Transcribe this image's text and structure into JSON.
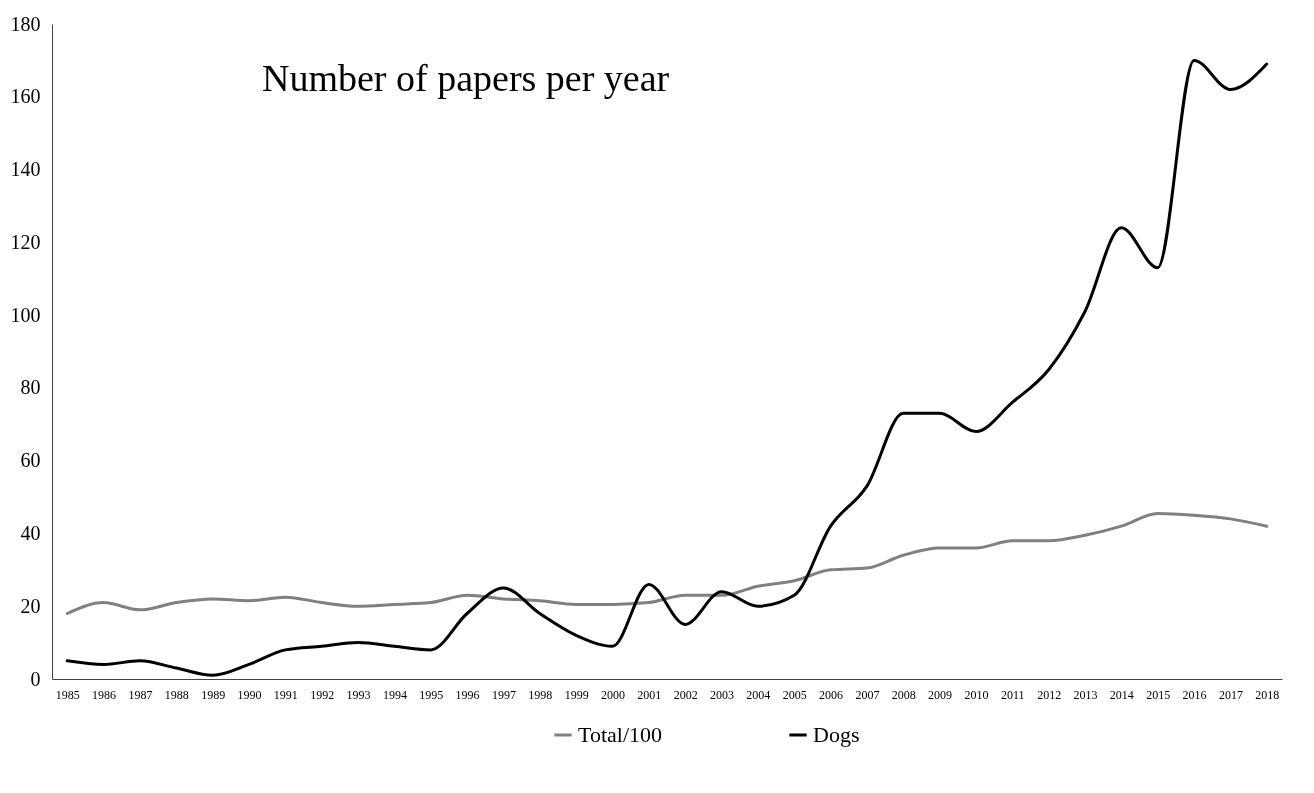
{
  "chart_data": {
    "type": "line",
    "title": "Number of papers per year",
    "categories": [
      "1985",
      "1986",
      "1987",
      "1988",
      "1989",
      "1990",
      "1991",
      "1992",
      "1993",
      "1994",
      "1995",
      "1996",
      "1997",
      "1998",
      "1999",
      "2000",
      "2001",
      "2002",
      "2003",
      "2004",
      "2005",
      "2006",
      "2007",
      "2008",
      "2009",
      "2010",
      "2011",
      "2012",
      "2013",
      "2014",
      "2015",
      "2016",
      "2017",
      "2018"
    ],
    "series": [
      {
        "name": "Total/100",
        "color": "#808080",
        "values": [
          18,
          21,
          19,
          21,
          22,
          21.5,
          22.5,
          21,
          20,
          20.5,
          21,
          23,
          22,
          21.5,
          20.5,
          20.5,
          21,
          23,
          23,
          25.5,
          27,
          30,
          30.5,
          34,
          36,
          36,
          38,
          38,
          39.5,
          42,
          45.5,
          45,
          44,
          42
        ]
      },
      {
        "name": "Dogs",
        "color": "#000000",
        "values": [
          5,
          4,
          5,
          3,
          1,
          4,
          8,
          9,
          10,
          9,
          8,
          18,
          25,
          18,
          12,
          9,
          26,
          15,
          24,
          20,
          23,
          42,
          53,
          73,
          73,
          68,
          76,
          85,
          101,
          124,
          113,
          170,
          162,
          169
        ]
      }
    ],
    "ylim": [
      0,
      180
    ],
    "yticks": [
      0,
      20,
      40,
      60,
      80,
      100,
      120,
      140,
      160,
      180
    ],
    "grid": false,
    "legend": "bottom"
  }
}
